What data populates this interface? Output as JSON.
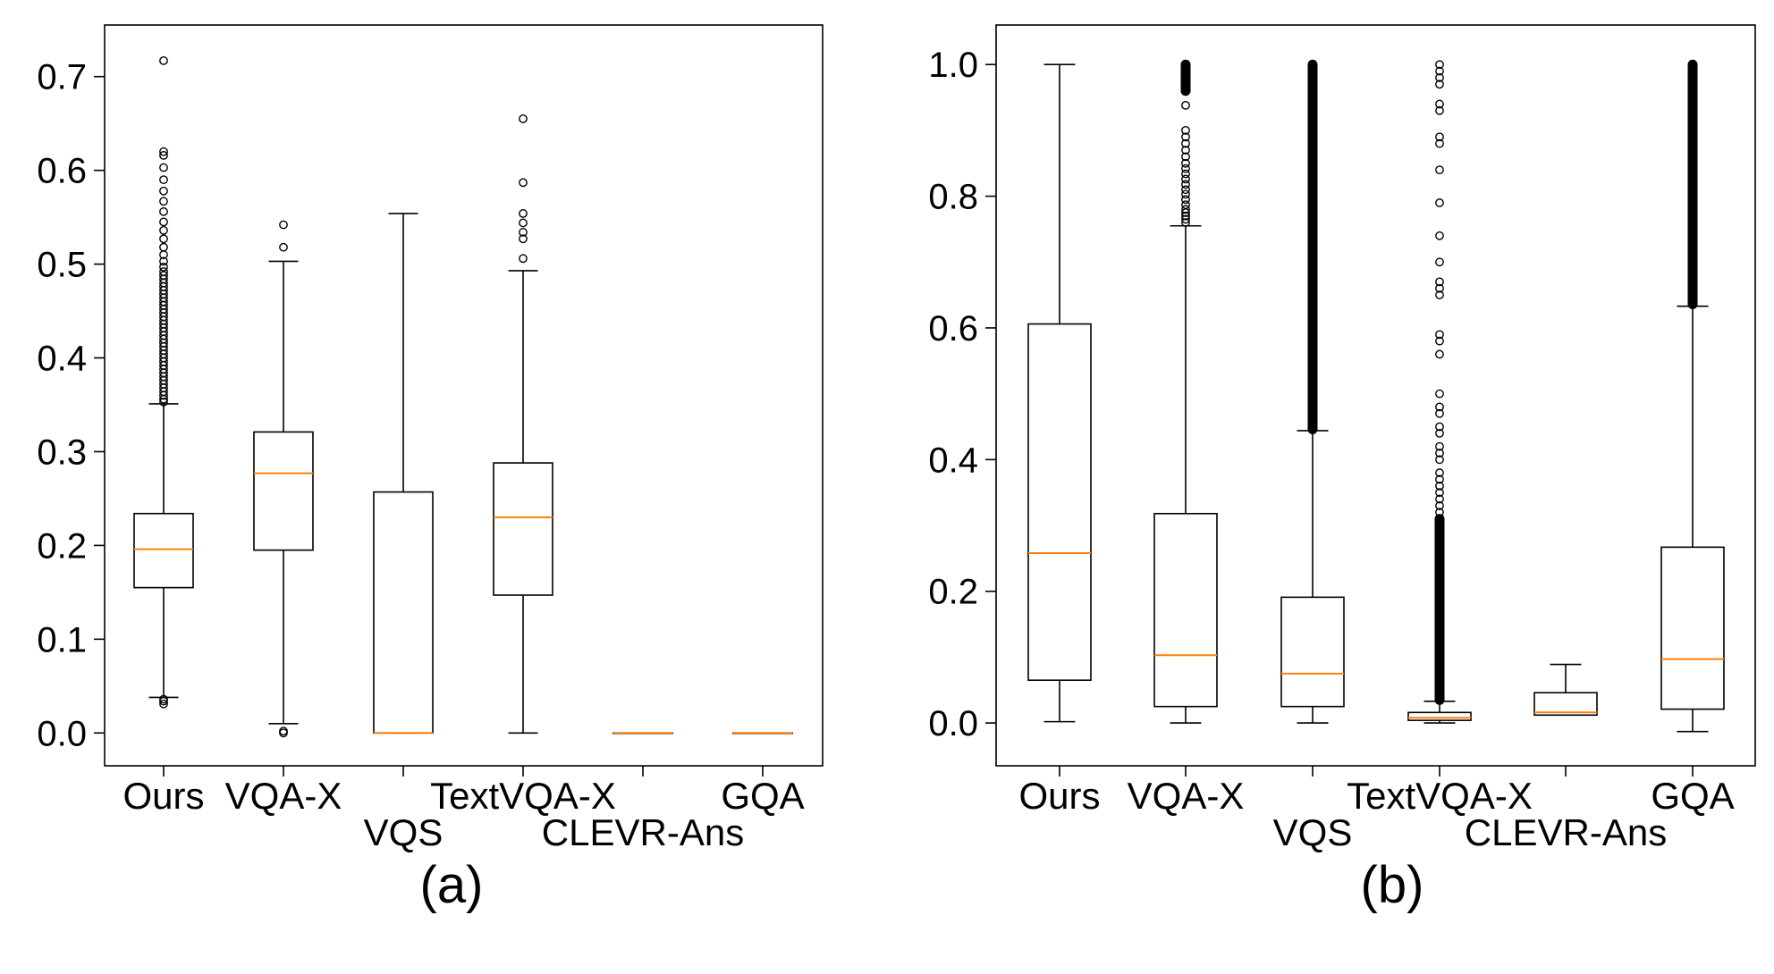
{
  "chart_data": [
    {
      "type": "box",
      "panel_label": "(a)",
      "categories": [
        "Ours",
        "VQA-X",
        "VQS",
        "TextVQA-X",
        "CLEVR-Ans",
        "GQA"
      ],
      "ylim": [
        -0.035,
        0.755
      ],
      "yticks": [
        "0.0",
        "0.1",
        "0.2",
        "0.3",
        "0.4",
        "0.5",
        "0.6",
        "0.7"
      ],
      "ytick_values": [
        0.0,
        0.1,
        0.2,
        0.3,
        0.4,
        0.5,
        0.6,
        0.7
      ],
      "boxes": [
        {
          "name": "Ours",
          "whislo": 0.038,
          "q1": 0.155,
          "med": 0.196,
          "q3": 0.234,
          "whishi": 0.351,
          "fliers": [
            0.031,
            0.034,
            0.036,
            0.353,
            0.356,
            0.36,
            0.364,
            0.368,
            0.372,
            0.376,
            0.38,
            0.384,
            0.388,
            0.392,
            0.396,
            0.4,
            0.404,
            0.408,
            0.412,
            0.416,
            0.42,
            0.424,
            0.428,
            0.432,
            0.436,
            0.44,
            0.444,
            0.448,
            0.452,
            0.456,
            0.46,
            0.464,
            0.468,
            0.472,
            0.476,
            0.48,
            0.484,
            0.488,
            0.492,
            0.497,
            0.503,
            0.51,
            0.518,
            0.527,
            0.536,
            0.545,
            0.556,
            0.567,
            0.578,
            0.59,
            0.603,
            0.616,
            0.62,
            0.717
          ]
        },
        {
          "name": "VQA-X",
          "whislo": 0.01,
          "q1": 0.195,
          "med": 0.277,
          "q3": 0.321,
          "whishi": 0.503,
          "fliers": [
            0.0,
            0.002,
            0.518,
            0.542
          ]
        },
        {
          "name": "VQS",
          "whislo": 0.0,
          "q1": 0.0,
          "med": 0.0,
          "q3": 0.257,
          "whishi": 0.554,
          "fliers": []
        },
        {
          "name": "TextVQA-X",
          "whislo": 0.0,
          "q1": 0.147,
          "med": 0.23,
          "q3": 0.288,
          "whishi": 0.493,
          "fliers": [
            0.506,
            0.527,
            0.534,
            0.544,
            0.554,
            0.587,
            0.655
          ]
        },
        {
          "name": "CLEVR-Ans",
          "whislo": 0.0,
          "q1": 0.0,
          "med": 0.0,
          "q3": 0.0,
          "whishi": 0.0,
          "fliers": []
        },
        {
          "name": "GQA",
          "whislo": 0.0,
          "q1": 0.0,
          "med": 0.0,
          "q3": 0.0,
          "whishi": 0.0,
          "fliers": []
        }
      ]
    },
    {
      "type": "box",
      "panel_label": "(b)",
      "categories": [
        "Ours",
        "VQA-X",
        "VQS",
        "TextVQA-X",
        "CLEVR-Ans",
        "GQA"
      ],
      "ylim": [
        -0.065,
        1.06
      ],
      "yticks": [
        "0.0",
        "0.2",
        "0.4",
        "0.6",
        "0.8",
        "1.0"
      ],
      "ytick_values": [
        0.0,
        0.2,
        0.4,
        0.6,
        0.8,
        1.0
      ],
      "boxes": [
        {
          "name": "Ours",
          "whislo": 0.002,
          "q1": 0.065,
          "med": 0.258,
          "q3": 0.606,
          "whishi": 1.0,
          "fliers": []
        },
        {
          "name": "VQA-X",
          "whislo": 0.0,
          "q1": 0.025,
          "med": 0.103,
          "q3": 0.318,
          "whishi": 0.755,
          "fliers": [
            0.76,
            0.765,
            0.77,
            0.775,
            0.78,
            0.787,
            0.795,
            0.803,
            0.81,
            0.818,
            0.826,
            0.834,
            0.842,
            0.85,
            0.86,
            0.87,
            0.88,
            0.89,
            0.9,
            0.938,
            0.96,
            0.97,
            0.975,
            0.98,
            0.985,
            0.99,
            0.995,
            1.0
          ],
          "flier_band": [
            0.96,
            1.0
          ]
        },
        {
          "name": "VQS",
          "whislo": 0.0,
          "q1": 0.025,
          "med": 0.075,
          "q3": 0.191,
          "whishi": 0.444,
          "fliers": [],
          "flier_band": [
            0.446,
            1.0
          ]
        },
        {
          "name": "TextVQA-X",
          "whislo": 0.0,
          "q1": 0.004,
          "med": 0.008,
          "q3": 0.016,
          "whishi": 0.033,
          "fliers": [
            0.035,
            0.04,
            0.045,
            0.05,
            0.06,
            0.07,
            0.08,
            0.09,
            0.1,
            0.11,
            0.12,
            0.13,
            0.14,
            0.15,
            0.16,
            0.17,
            0.18,
            0.19,
            0.2,
            0.21,
            0.22,
            0.23,
            0.24,
            0.25,
            0.26,
            0.27,
            0.28,
            0.29,
            0.3,
            0.31,
            0.32,
            0.33,
            0.34,
            0.35,
            0.36,
            0.37,
            0.38,
            0.4,
            0.41,
            0.42,
            0.44,
            0.45,
            0.47,
            0.48,
            0.5,
            0.56,
            0.58,
            0.59,
            0.65,
            0.66,
            0.67,
            0.7,
            0.74,
            0.79,
            0.84,
            0.88,
            0.89,
            0.93,
            0.94,
            0.97,
            0.98,
            0.99,
            1.0
          ],
          "flier_band": [
            0.035,
            0.31
          ]
        },
        {
          "name": "CLEVR-Ans",
          "whislo": 0.012,
          "q1": 0.012,
          "med": 0.016,
          "q3": 0.046,
          "whishi": 0.089,
          "fliers": []
        },
        {
          "name": "GQA",
          "whislo": -0.013,
          "q1": 0.021,
          "med": 0.097,
          "q3": 0.267,
          "whishi": 0.633,
          "fliers": [],
          "flier_band": [
            0.636,
            1.0
          ]
        }
      ]
    }
  ]
}
